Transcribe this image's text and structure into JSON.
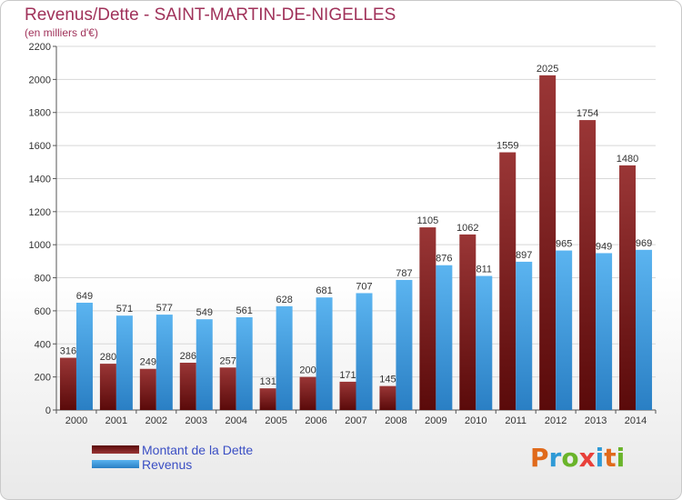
{
  "title": "Revenus/Dette - SAINT-MARTIN-DE-NIGELLES",
  "subtitle": "(en milliers d'€)",
  "logo": {
    "text": "Proxiti",
    "letter_colors": [
      "#e06a1b",
      "#2f9ad6",
      "#6ab42a",
      "#e8403a",
      "#2f9ad6",
      "#e06a1b",
      "#6ab42a"
    ]
  },
  "chart_data": {
    "type": "bar",
    "categories": [
      "2000",
      "2001",
      "2002",
      "2003",
      "2004",
      "2005",
      "2006",
      "2007",
      "2008",
      "2009",
      "2010",
      "2011",
      "2012",
      "2013",
      "2014"
    ],
    "series": [
      {
        "name": "Montant de la Dette",
        "values": [
          316,
          280,
          249,
          286,
          257,
          131,
          200,
          171,
          145,
          1105,
          1062,
          1559,
          2025,
          1754,
          1480
        ],
        "color": "#7a1c1c"
      },
      {
        "name": "Revenus",
        "values": [
          649,
          571,
          577,
          549,
          561,
          628,
          681,
          707,
          787,
          876,
          811,
          897,
          965,
          949,
          969
        ],
        "color": "#3a9be0"
      }
    ],
    "ylim": [
      0,
      2200
    ],
    "yticks": [
      0,
      200,
      400,
      600,
      800,
      1000,
      1200,
      1400,
      1600,
      1800,
      2000,
      2200
    ],
    "grid": true,
    "legend": "bottom-left"
  }
}
